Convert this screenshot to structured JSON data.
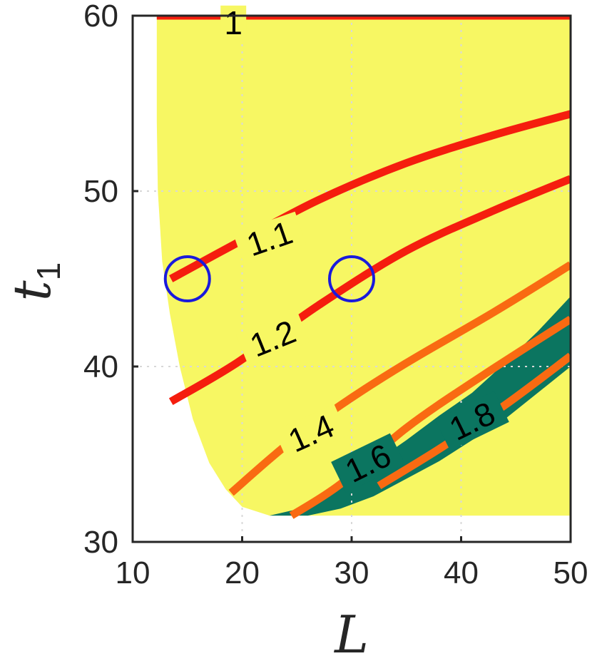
{
  "chart_data": {
    "type": "contour",
    "xlabel": "L",
    "ylabel": "t",
    "ylabel_subscript": "1",
    "xlim": [
      10,
      50
    ],
    "ylim": [
      30,
      60
    ],
    "xticks": [
      10,
      20,
      30,
      40,
      50
    ],
    "yticks": [
      30,
      40,
      50,
      60
    ],
    "x_tick_labels": [
      "10",
      "20",
      "30",
      "40",
      "50"
    ],
    "y_tick_labels": [
      "30",
      "40",
      "50",
      "60"
    ],
    "grid": true,
    "colors": {
      "feasible_region": "#f7f763",
      "high_region": "#0b7560",
      "contour_low": "#f51d0e",
      "contour_high": "#f96a12",
      "marker": "#1a1adc",
      "axes": "#262626"
    },
    "regions": [
      {
        "name": "feasible",
        "color": "#f7f763",
        "boundary": [
          [
            12.2,
            60
          ],
          [
            50,
            60
          ],
          [
            50,
            31.5
          ],
          [
            22.5,
            31.5
          ],
          [
            20,
            32
          ],
          [
            18.5,
            33
          ],
          [
            17,
            34.5
          ],
          [
            15.5,
            37
          ],
          [
            14.3,
            40
          ],
          [
            13.4,
            43
          ],
          [
            12.7,
            46
          ],
          [
            12.3,
            50
          ],
          [
            12.2,
            54
          ],
          [
            12.2,
            60
          ]
        ]
      },
      {
        "name": "high",
        "color": "#0b7560",
        "boundary": [
          [
            22.5,
            31.5
          ],
          [
            26,
            32
          ],
          [
            29,
            33.2
          ],
          [
            32,
            34.5
          ],
          [
            35,
            35.8
          ],
          [
            38,
            37.2
          ],
          [
            41,
            38.5
          ],
          [
            44,
            40.2
          ],
          [
            47,
            42
          ],
          [
            50,
            44
          ],
          [
            50,
            40
          ],
          [
            47,
            38.5
          ],
          [
            44,
            37
          ],
          [
            41,
            35.8
          ],
          [
            38,
            34.6
          ],
          [
            35,
            33.6
          ],
          [
            32,
            32.6
          ],
          [
            29,
            31.9
          ],
          [
            26,
            31.5
          ]
        ]
      }
    ],
    "contours": [
      {
        "level": "1",
        "color": "#f51d0e",
        "x": [
          12.2,
          50
        ],
        "y": [
          60,
          60
        ],
        "label": {
          "text": "1",
          "x": 19.2,
          "y": 59.6,
          "angle": 0
        }
      },
      {
        "level": "1.1",
        "color": "#f51d0e",
        "x": [
          13.5,
          20,
          27,
          35,
          43,
          50
        ],
        "y": [
          45,
          47.2,
          49.5,
          51.6,
          53.2,
          54.4
        ],
        "label": {
          "text": "1.1",
          "x": 22.5,
          "y": 47.3,
          "angle": -19
        }
      },
      {
        "level": "1.2",
        "color": "#f51d0e",
        "x": [
          13.5,
          19.5,
          27,
          35,
          43,
          50
        ],
        "y": [
          38,
          40.2,
          43.5,
          46.6,
          48.9,
          50.7
        ],
        "label": {
          "text": "1.2",
          "x": 22.8,
          "y": 41.6,
          "angle": -22
        }
      },
      {
        "level": "1.4",
        "color": "#f96a12",
        "x": [
          19,
          24,
          29,
          35,
          43,
          50
        ],
        "y": [
          32.8,
          35.5,
          37.8,
          40.2,
          43.1,
          45.8
        ],
        "label": {
          "text": "1.4",
          "x": 26.3,
          "y": 36.2,
          "angle": -24
        }
      },
      {
        "level": "1.6",
        "color": "#f96a12",
        "x": [
          24.5,
          29,
          35,
          42,
          50
        ],
        "y": [
          31.5,
          33.3,
          36.5,
          39.5,
          42.7
        ],
        "label": {
          "text": "1.6",
          "x": 31.5,
          "y": 34.5,
          "angle": -26
        }
      },
      {
        "level": "1.8",
        "color": "#f96a12",
        "x": [
          32.5,
          38,
          44,
          50
        ],
        "y": [
          33.2,
          35.3,
          37.8,
          40.6
        ],
        "label": {
          "text": "1.8",
          "x": 41,
          "y": 36.9,
          "angle": -26
        }
      }
    ],
    "markers": [
      {
        "x": 15,
        "y": 45,
        "shape": "circle",
        "color": "#1a1adc"
      },
      {
        "x": 30,
        "y": 45,
        "shape": "circle",
        "color": "#1a1adc"
      }
    ]
  }
}
